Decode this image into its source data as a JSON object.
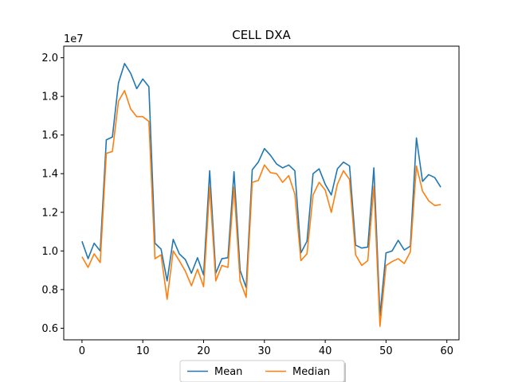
{
  "chart_data": {
    "type": "line",
    "title": "CELL DXA",
    "xlabel": "",
    "ylabel": "",
    "y_offset_label": "1e7",
    "xlim": [
      -3,
      62
    ],
    "ylim": [
      0.54,
      2.06
    ],
    "xticks": [
      0,
      10,
      20,
      30,
      40,
      50,
      60
    ],
    "xtick_labels": [
      "0",
      "10",
      "20",
      "30",
      "40",
      "50",
      "60"
    ],
    "yticks": [
      0.6,
      0.8,
      1.0,
      1.2,
      1.4,
      1.6,
      1.8,
      2.0
    ],
    "ytick_labels": [
      "0.6",
      "0.8",
      "1.0",
      "1.2",
      "1.4",
      "1.6",
      "1.8",
      "2.0"
    ],
    "grid": false,
    "legend_position": "bottom-center",
    "series": [
      {
        "name": "Mean",
        "color": "#1f77b4",
        "values": [
          1.05,
          0.96,
          1.04,
          1.0,
          1.575,
          1.59,
          1.87,
          1.97,
          1.92,
          1.84,
          1.89,
          1.85,
          1.04,
          1.01,
          0.845,
          1.06,
          0.985,
          0.955,
          0.885,
          0.965,
          0.875,
          1.415,
          0.885,
          0.96,
          0.965,
          1.41,
          0.9,
          0.81,
          1.42,
          1.46,
          1.53,
          1.495,
          1.45,
          1.43,
          1.445,
          1.415,
          0.99,
          1.05,
          1.4,
          1.425,
          1.345,
          1.29,
          1.425,
          1.46,
          1.44,
          1.03,
          1.015,
          1.02,
          1.43,
          0.665,
          0.99,
          1.0,
          1.055,
          1.005,
          1.025,
          1.585,
          1.36,
          1.395,
          1.38,
          1.33
        ]
      },
      {
        "name": "Median",
        "color": "#ff7f0e",
        "values": [
          0.97,
          0.915,
          0.985,
          0.94,
          1.505,
          1.515,
          1.775,
          1.83,
          1.735,
          1.695,
          1.695,
          1.67,
          0.96,
          0.98,
          0.75,
          1.0,
          0.95,
          0.895,
          0.82,
          0.905,
          0.815,
          1.33,
          0.845,
          0.925,
          0.915,
          1.33,
          0.845,
          0.76,
          1.355,
          1.365,
          1.445,
          1.405,
          1.4,
          1.355,
          1.39,
          1.295,
          0.95,
          0.985,
          1.29,
          1.355,
          1.315,
          1.2,
          1.345,
          1.415,
          1.37,
          0.98,
          0.925,
          0.95,
          1.335,
          0.61,
          0.925,
          0.945,
          0.96,
          0.935,
          0.995,
          1.44,
          1.31,
          1.26,
          1.235,
          1.24
        ]
      }
    ]
  }
}
